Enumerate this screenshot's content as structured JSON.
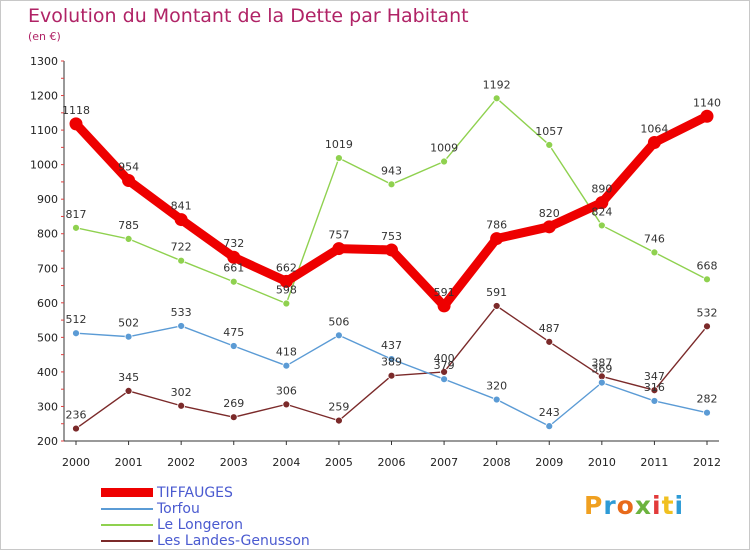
{
  "title": "Evolution du Montant de la Dette par Habitant",
  "subtitle": "(en €)",
  "logo": {
    "letters": [
      "P",
      "r",
      "o",
      "x",
      "i",
      "t",
      "i"
    ],
    "colors": [
      "#f0a020",
      "#2e9bd6",
      "#e86a1a",
      "#6cb33e",
      "#e23a3a",
      "#f0c020",
      "#2e9bd6"
    ]
  },
  "chart_data": {
    "type": "line",
    "title": "Evolution du Montant de la Dette par Habitant",
    "ylabel": "(en €)",
    "x": [
      "2000",
      "2001",
      "2002",
      "2003",
      "2004",
      "2005",
      "2006",
      "2007",
      "2008",
      "2009",
      "2010",
      "2011",
      "2012"
    ],
    "ylim": [
      200,
      1300
    ],
    "yticks": [
      200,
      300,
      400,
      500,
      600,
      700,
      800,
      900,
      1000,
      1100,
      1200,
      1300
    ],
    "grid": false,
    "legend": "bottom-left",
    "series": [
      {
        "name": "TIFFAUGES",
        "color": "#ee0000",
        "values": [
          1118,
          954,
          841,
          732,
          662,
          757,
          753,
          591,
          786,
          820,
          890,
          1064,
          1140
        ],
        "labels": [
          "1118",
          "954",
          "841",
          "732",
          "662",
          "757",
          "753",
          "591",
          "786",
          "820",
          "890",
          "1064",
          "1140"
        ]
      },
      {
        "name": "Torfou",
        "color": "#5b9bd5",
        "values": [
          512,
          502,
          533,
          475,
          418,
          506,
          437,
          379,
          320,
          243,
          369,
          316,
          282
        ],
        "labels": [
          "512",
          "502",
          "533",
          "475",
          "418",
          "506",
          "437",
          "379",
          "320",
          "243",
          "369",
          "316",
          "282"
        ]
      },
      {
        "name": "Le Longeron",
        "color": "#8fd14f",
        "values": [
          817,
          785,
          722,
          661,
          598,
          1019,
          943,
          1009,
          1192,
          1057,
          824,
          746,
          668
        ],
        "labels": [
          "817",
          "785",
          "722",
          "661",
          "598",
          "1019",
          "943",
          "1009",
          "1192",
          "1057",
          "824",
          "746",
          "668"
        ]
      },
      {
        "name": "Les Landes-Genusson",
        "color": "#7b2a2a",
        "values": [
          236,
          345,
          302,
          269,
          306,
          259,
          389,
          400,
          591,
          487,
          387,
          347,
          532
        ],
        "labels": [
          "236",
          "345",
          "302",
          "269",
          "306",
          "259",
          "389",
          "400",
          "591",
          "487",
          "387",
          "347",
          "532"
        ]
      }
    ]
  }
}
